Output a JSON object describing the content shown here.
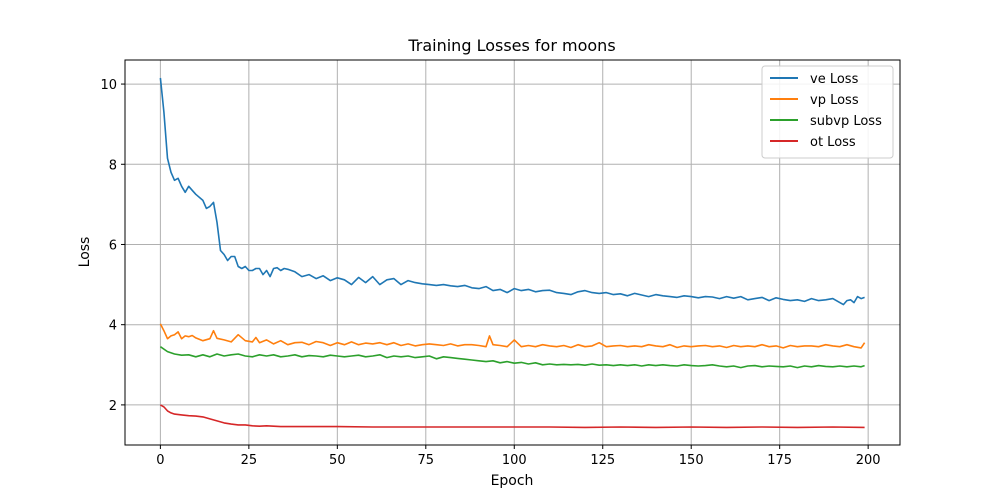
{
  "chart_data": {
    "type": "line",
    "title": "Training Losses for moons",
    "xlabel": "Epoch",
    "ylabel": "Loss",
    "xlim": [
      -10,
      209
    ],
    "ylim": [
      1.0,
      10.6
    ],
    "xticks": [
      0,
      25,
      50,
      75,
      100,
      125,
      150,
      175,
      200
    ],
    "yticks": [
      2,
      4,
      6,
      8,
      10
    ],
    "grid": true,
    "legend_position": "top-right",
    "series": [
      {
        "name": "ve Loss",
        "color": "#1f77b4",
        "x": [
          0,
          1,
          2,
          3,
          4,
          5,
          6,
          7,
          8,
          9,
          10,
          12,
          13,
          14,
          15,
          16,
          17,
          18,
          19,
          20,
          21,
          22,
          23,
          24,
          25,
          26,
          27,
          28,
          29,
          30,
          31,
          32,
          33,
          34,
          35,
          36,
          38,
          40,
          42,
          44,
          46,
          48,
          50,
          52,
          54,
          56,
          58,
          60,
          62,
          64,
          66,
          68,
          70,
          72,
          74,
          76,
          78,
          80,
          82,
          84,
          86,
          88,
          90,
          92,
          94,
          96,
          98,
          100,
          102,
          104,
          106,
          108,
          110,
          112,
          114,
          116,
          118,
          120,
          122,
          124,
          126,
          128,
          130,
          132,
          134,
          136,
          138,
          140,
          142,
          144,
          146,
          148,
          150,
          152,
          154,
          156,
          158,
          160,
          162,
          164,
          166,
          168,
          170,
          172,
          174,
          176,
          178,
          180,
          182,
          184,
          186,
          188,
          190,
          192,
          193,
          194,
          195,
          196,
          197,
          198,
          199
        ],
        "values": [
          10.15,
          9.3,
          8.15,
          7.8,
          7.6,
          7.65,
          7.45,
          7.3,
          7.45,
          7.35,
          7.25,
          7.1,
          6.9,
          6.95,
          7.05,
          6.55,
          5.85,
          5.75,
          5.6,
          5.7,
          5.7,
          5.45,
          5.4,
          5.45,
          5.35,
          5.35,
          5.4,
          5.4,
          5.25,
          5.35,
          5.2,
          5.4,
          5.42,
          5.35,
          5.4,
          5.38,
          5.32,
          5.2,
          5.25,
          5.15,
          5.22,
          5.1,
          5.17,
          5.12,
          5.0,
          5.18,
          5.05,
          5.2,
          5.0,
          5.12,
          5.15,
          5.0,
          5.1,
          5.05,
          5.02,
          5.0,
          4.98,
          5.0,
          4.97,
          4.95,
          4.98,
          4.92,
          4.9,
          4.95,
          4.85,
          4.88,
          4.8,
          4.9,
          4.85,
          4.88,
          4.82,
          4.85,
          4.86,
          4.8,
          4.78,
          4.75,
          4.82,
          4.85,
          4.8,
          4.78,
          4.8,
          4.75,
          4.77,
          4.72,
          4.78,
          4.74,
          4.7,
          4.75,
          4.72,
          4.7,
          4.68,
          4.72,
          4.7,
          4.67,
          4.7,
          4.69,
          4.65,
          4.7,
          4.66,
          4.7,
          4.62,
          4.65,
          4.68,
          4.6,
          4.67,
          4.63,
          4.6,
          4.62,
          4.58,
          4.65,
          4.6,
          4.62,
          4.65,
          4.55,
          4.5,
          4.6,
          4.62,
          4.55,
          4.7,
          4.65,
          4.68
        ]
      },
      {
        "name": "vp Loss",
        "color": "#ff7f0e",
        "x": [
          0,
          1,
          2,
          3,
          4,
          5,
          6,
          7,
          8,
          9,
          10,
          12,
          14,
          15,
          16,
          18,
          20,
          22,
          24,
          26,
          27,
          28,
          30,
          32,
          34,
          36,
          38,
          40,
          42,
          44,
          46,
          48,
          50,
          52,
          54,
          56,
          58,
          60,
          62,
          64,
          66,
          68,
          70,
          72,
          74,
          76,
          78,
          80,
          82,
          84,
          86,
          88,
          90,
          92,
          93,
          94,
          96,
          98,
          100,
          102,
          104,
          106,
          108,
          110,
          112,
          114,
          116,
          118,
          120,
          122,
          124,
          126,
          128,
          130,
          132,
          134,
          136,
          138,
          140,
          142,
          144,
          146,
          148,
          150,
          152,
          154,
          156,
          158,
          160,
          162,
          164,
          166,
          168,
          170,
          172,
          174,
          176,
          178,
          180,
          182,
          184,
          186,
          188,
          190,
          192,
          194,
          196,
          198,
          199
        ],
        "values": [
          4.02,
          3.85,
          3.65,
          3.72,
          3.75,
          3.82,
          3.65,
          3.72,
          3.7,
          3.73,
          3.67,
          3.6,
          3.65,
          3.85,
          3.66,
          3.62,
          3.57,
          3.75,
          3.6,
          3.57,
          3.68,
          3.55,
          3.62,
          3.52,
          3.6,
          3.5,
          3.55,
          3.56,
          3.5,
          3.58,
          3.55,
          3.48,
          3.55,
          3.5,
          3.57,
          3.5,
          3.54,
          3.52,
          3.55,
          3.5,
          3.55,
          3.48,
          3.52,
          3.47,
          3.5,
          3.52,
          3.5,
          3.48,
          3.52,
          3.47,
          3.5,
          3.5,
          3.48,
          3.45,
          3.72,
          3.5,
          3.48,
          3.45,
          3.62,
          3.45,
          3.48,
          3.45,
          3.5,
          3.47,
          3.45,
          3.48,
          3.43,
          3.5,
          3.45,
          3.47,
          3.55,
          3.45,
          3.47,
          3.48,
          3.45,
          3.47,
          3.45,
          3.5,
          3.47,
          3.45,
          3.5,
          3.43,
          3.47,
          3.45,
          3.47,
          3.48,
          3.45,
          3.47,
          3.43,
          3.48,
          3.45,
          3.47,
          3.45,
          3.5,
          3.45,
          3.47,
          3.42,
          3.48,
          3.45,
          3.47,
          3.47,
          3.45,
          3.5,
          3.47,
          3.45,
          3.5,
          3.45,
          3.42,
          3.55
        ]
      },
      {
        "name": "subvp Loss",
        "color": "#2ca02c",
        "x": [
          0,
          2,
          4,
          6,
          8,
          10,
          12,
          14,
          16,
          18,
          20,
          22,
          24,
          26,
          28,
          30,
          32,
          34,
          36,
          38,
          40,
          42,
          44,
          46,
          48,
          50,
          52,
          54,
          56,
          58,
          60,
          62,
          64,
          66,
          68,
          70,
          72,
          74,
          76,
          78,
          80,
          82,
          84,
          86,
          88,
          90,
          92,
          94,
          96,
          98,
          100,
          102,
          104,
          106,
          108,
          110,
          112,
          114,
          116,
          118,
          120,
          122,
          124,
          126,
          128,
          130,
          132,
          134,
          136,
          138,
          140,
          142,
          144,
          146,
          148,
          150,
          152,
          154,
          156,
          158,
          160,
          162,
          164,
          166,
          168,
          170,
          172,
          174,
          176,
          178,
          180,
          182,
          184,
          186,
          188,
          190,
          192,
          194,
          196,
          198,
          199
        ],
        "values": [
          3.45,
          3.33,
          3.27,
          3.24,
          3.25,
          3.2,
          3.25,
          3.2,
          3.27,
          3.22,
          3.25,
          3.27,
          3.22,
          3.2,
          3.25,
          3.22,
          3.25,
          3.2,
          3.22,
          3.25,
          3.2,
          3.23,
          3.22,
          3.2,
          3.24,
          3.22,
          3.2,
          3.22,
          3.24,
          3.2,
          3.22,
          3.25,
          3.18,
          3.22,
          3.2,
          3.22,
          3.18,
          3.2,
          3.22,
          3.15,
          3.2,
          3.18,
          3.16,
          3.14,
          3.12,
          3.1,
          3.08,
          3.1,
          3.05,
          3.08,
          3.04,
          3.06,
          3.02,
          3.05,
          3.0,
          3.02,
          3.0,
          3.01,
          3.0,
          3.01,
          2.99,
          3.02,
          2.99,
          3.0,
          2.98,
          3.0,
          2.98,
          3.0,
          2.97,
          3.0,
          2.98,
          3.0,
          2.98,
          2.97,
          3.0,
          2.98,
          2.97,
          2.98,
          3.0,
          2.97,
          2.95,
          2.97,
          2.93,
          2.97,
          2.98,
          2.95,
          2.97,
          2.96,
          2.95,
          2.97,
          2.93,
          2.97,
          2.95,
          2.98,
          2.96,
          2.95,
          2.97,
          2.95,
          2.97,
          2.95,
          2.98
        ]
      },
      {
        "name": "ot Loss",
        "color": "#d62728",
        "x": [
          0,
          1,
          2,
          3,
          4,
          6,
          8,
          10,
          12,
          14,
          16,
          18,
          20,
          22,
          24,
          26,
          28,
          30,
          32,
          34,
          36,
          40,
          50,
          60,
          70,
          80,
          90,
          100,
          110,
          120,
          130,
          140,
          150,
          160,
          170,
          180,
          190,
          199
        ],
        "values": [
          2.0,
          1.95,
          1.85,
          1.8,
          1.77,
          1.75,
          1.73,
          1.72,
          1.7,
          1.65,
          1.6,
          1.55,
          1.52,
          1.5,
          1.5,
          1.48,
          1.47,
          1.48,
          1.47,
          1.46,
          1.46,
          1.46,
          1.46,
          1.45,
          1.45,
          1.45,
          1.45,
          1.45,
          1.45,
          1.44,
          1.45,
          1.44,
          1.45,
          1.44,
          1.45,
          1.44,
          1.45,
          1.44
        ]
      }
    ]
  }
}
